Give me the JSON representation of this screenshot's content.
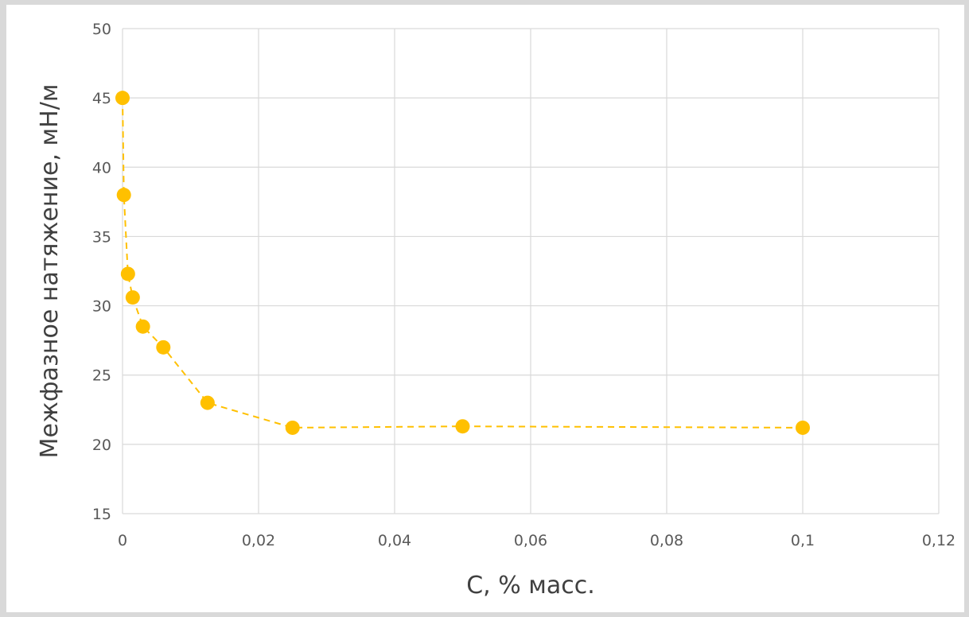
{
  "chart_data": {
    "type": "scatter",
    "title": "",
    "xlabel": "С, % масс.",
    "ylabel": "Межфазное натяжение, мН/м",
    "xlim": [
      0,
      0.12
    ],
    "ylim": [
      15,
      50
    ],
    "x_ticks": [
      "0",
      "0,02",
      "0,04",
      "0,06",
      "0,08",
      "0,1",
      "0,12"
    ],
    "y_ticks": [
      "15",
      "20",
      "25",
      "30",
      "35",
      "40",
      "45",
      "50"
    ],
    "grid": true,
    "legend": "none",
    "line_style": "dashed",
    "color": "#FFC000",
    "series": [
      {
        "x": [
          0,
          0.0002,
          0.0008,
          0.0015,
          0.003,
          0.006,
          0.0125,
          0.025,
          0.05,
          0.1
        ],
        "y": [
          45.0,
          38.0,
          32.3,
          30.6,
          28.5,
          27.0,
          23.0,
          21.2,
          21.3,
          21.2
        ]
      }
    ]
  }
}
